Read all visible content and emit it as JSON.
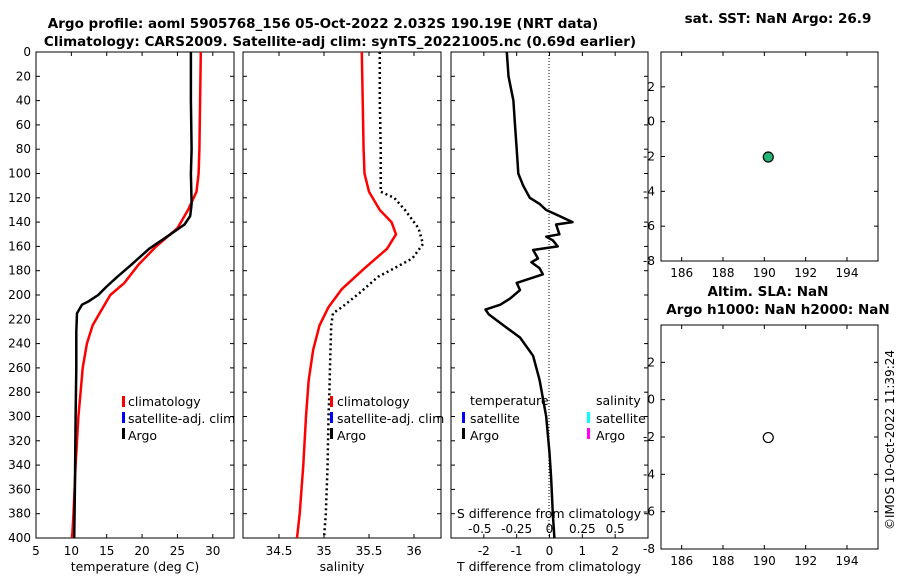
{
  "title": {
    "line1": "Argo profile: aoml 5905768_156 05-Oct-2022 2.032S 190.19E (NRT data)",
    "line2": "Climatology: CARS2009. Satellite-adj clim: synTS_20221005.nc (0.69d earlier)"
  },
  "timestamp": "©IMOS 10-Oct-2022 11:39:24",
  "colors": {
    "climatology": "#ff0000",
    "satellite": "#0000ff",
    "argo": "#000000",
    "sat_salinity": "#00ffff",
    "argo_salinity": "#ff00ff",
    "sst_marker": "#22b573"
  },
  "chart_data": [
    {
      "id": "temperature",
      "type": "line",
      "xlabel": "temperature (deg C)",
      "xlim": [
        5,
        33
      ],
      "ylim": [
        0,
        400
      ],
      "xticks": [
        "5",
        "10",
        "15",
        "20",
        "25",
        "30"
      ],
      "xtick_values": [
        5,
        10,
        15,
        20,
        25,
        30
      ],
      "yticks": [
        "0",
        "20",
        "40",
        "60",
        "80",
        "100",
        "120",
        "140",
        "160",
        "180",
        "200",
        "220",
        "240",
        "260",
        "280",
        "300",
        "320",
        "340",
        "360",
        "380",
        "400"
      ],
      "ytick_values": [
        0,
        20,
        40,
        60,
        80,
        100,
        120,
        140,
        160,
        180,
        200,
        220,
        240,
        260,
        280,
        300,
        320,
        340,
        360,
        380,
        400
      ],
      "legend": [
        "climatology",
        "satellite-adj. clim",
        "Argo"
      ],
      "series": [
        {
          "name": "climatology",
          "color": "#ff0000",
          "x": [
            28.3,
            28.2,
            28.1,
            28.0,
            27.7,
            26.5,
            25.0,
            22.0,
            19.5,
            17.5,
            15.5,
            14.0,
            13.0,
            12.2,
            11.6,
            11.3,
            11.0,
            10.6,
            10.3,
            10.1
          ],
          "y": [
            0,
            40,
            80,
            100,
            115,
            130,
            145,
            160,
            175,
            190,
            200,
            215,
            225,
            240,
            260,
            280,
            300,
            340,
            380,
            400
          ]
        },
        {
          "name": "Argo",
          "color": "#000000",
          "x": [
            26.9,
            26.9,
            27.0,
            26.9,
            27.0,
            26.8,
            26.0,
            24.0,
            21.0,
            18.5,
            16.5,
            15.0,
            13.8,
            12.5,
            11.5,
            10.8,
            10.7,
            10.7,
            10.6,
            10.5,
            10.4
          ],
          "y": [
            0,
            40,
            80,
            100,
            125,
            135,
            142,
            150,
            162,
            175,
            185,
            193,
            200,
            205,
            208,
            215,
            230,
            260,
            300,
            360,
            400
          ]
        }
      ]
    },
    {
      "id": "salinity",
      "type": "line",
      "xlabel": "salinity",
      "xlim": [
        34.1,
        36.3
      ],
      "ylim": [
        0,
        400
      ],
      "xticks": [
        "34.5",
        "35",
        "35.5",
        "36"
      ],
      "xtick_values": [
        34.5,
        35,
        35.5,
        36
      ],
      "legend": [
        "climatology",
        "satellite-adj. clim",
        "Argo"
      ],
      "series": [
        {
          "name": "climatology",
          "color": "#ff0000",
          "x": [
            35.42,
            35.43,
            35.44,
            35.45,
            35.5,
            35.62,
            35.75,
            35.8,
            35.7,
            35.45,
            35.2,
            35.05,
            34.95,
            34.88,
            34.83,
            34.8,
            34.77,
            34.73,
            34.7
          ],
          "y": [
            0,
            40,
            80,
            100,
            115,
            130,
            140,
            150,
            162,
            178,
            195,
            210,
            225,
            245,
            270,
            300,
            340,
            380,
            400
          ]
        },
        {
          "name": "Argo",
          "color": "#000000",
          "x": [
            35.62,
            35.62,
            35.63,
            35.63,
            35.78,
            35.9,
            36.05,
            36.1,
            35.98,
            35.78,
            35.6,
            35.4,
            35.2,
            35.1,
            35.08,
            35.07,
            35.06,
            35.05,
            35.04,
            35.02,
            35.0
          ],
          "y": [
            0,
            40,
            80,
            115,
            120,
            130,
            145,
            158,
            170,
            178,
            185,
            198,
            210,
            215,
            225,
            250,
            280,
            300,
            340,
            380,
            400
          ]
        }
      ]
    },
    {
      "id": "difference",
      "type": "line",
      "xlabel": "T difference from climatology",
      "xlabel2": "S difference from climatology",
      "xlim": [
        -3,
        3
      ],
      "ylim": [
        0,
        400
      ],
      "xticks": [
        "-2",
        "-1",
        "0",
        "1",
        "2"
      ],
      "xtick_values": [
        -2,
        -1,
        0,
        1,
        2
      ],
      "sticks": [
        "-0.5",
        "-0.25",
        "0",
        "0.25",
        "0.5"
      ],
      "legend_titles": [
        "temperature",
        "salinity"
      ],
      "legend_t": [
        "satellite",
        "Argo"
      ],
      "legend_s": [
        "satellite",
        "Argo"
      ],
      "series": [
        {
          "name": "T Argo - clim",
          "color": "#000000",
          "x": [
            -1.3,
            -1.25,
            -1.1,
            -1.05,
            -1.0,
            -0.95,
            -0.8,
            -0.6,
            -0.3,
            -0.1,
            0.3,
            0.7,
            0.2,
            0.3,
            -0.1,
            0.1,
            0.25,
            -0.5,
            -0.35,
            -0.55,
            -0.3,
            -0.2,
            -1.0,
            -0.9,
            -1.2,
            -1.5,
            -1.95,
            -1.85,
            -1.4,
            -0.9,
            -0.5,
            -0.3,
            -0.1,
            0.0,
            0.05,
            0.1,
            0.15
          ],
          "y": [
            0,
            20,
            40,
            60,
            80,
            100,
            110,
            120,
            125,
            130,
            135,
            140,
            142,
            150,
            152,
            155,
            160,
            163,
            170,
            173,
            178,
            183,
            190,
            196,
            203,
            208,
            212,
            216,
            225,
            235,
            250,
            270,
            300,
            330,
            350,
            380,
            400
          ]
        }
      ]
    },
    {
      "id": "sst",
      "type": "scatter",
      "title": "sat. SST: NaN Argo: 26.9",
      "xlim": [
        185,
        195.5
      ],
      "ylim": [
        -8,
        4
      ],
      "xticks": [
        "186",
        "188",
        "190",
        "192",
        "194"
      ],
      "xtick_values": [
        186,
        188,
        190,
        192,
        194
      ],
      "yticks": [
        "2",
        "0",
        "-2",
        "-4",
        "-6",
        "-8"
      ],
      "ytick_values": [
        2,
        0,
        -2,
        -4,
        -6,
        -8
      ],
      "points": [
        {
          "x": 190.19,
          "y": -2.03,
          "color": "#22b573"
        }
      ]
    },
    {
      "id": "sla",
      "type": "scatter",
      "title": "Altim. SLA: NaN",
      "title2": "Argo h1000: NaN h2000: NaN",
      "xlim": [
        185,
        195.5
      ],
      "ylim": [
        -8,
        4
      ],
      "xticks": [
        "186",
        "188",
        "190",
        "192",
        "194"
      ],
      "xtick_values": [
        186,
        188,
        190,
        192,
        194
      ],
      "yticks": [
        "2",
        "0",
        "-2",
        "-4",
        "-6",
        "-8"
      ],
      "ytick_values": [
        2,
        0,
        -2,
        -4,
        -6,
        -8
      ],
      "points": [
        {
          "x": 190.19,
          "y": -2.03,
          "color": "#ffffff"
        }
      ]
    }
  ]
}
